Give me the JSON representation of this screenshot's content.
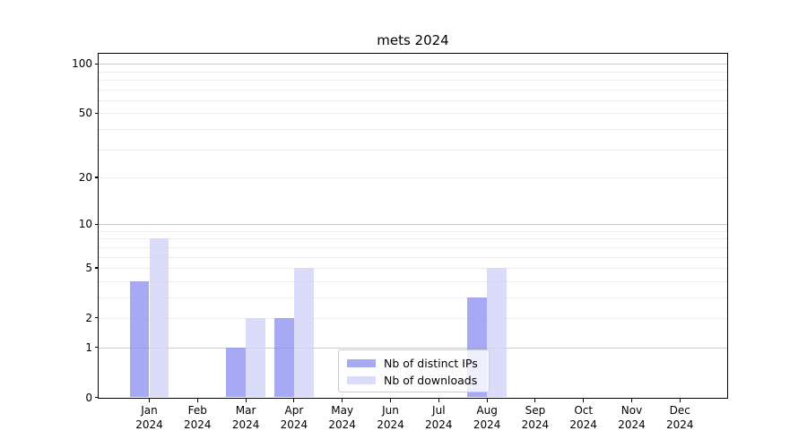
{
  "chart_data": {
    "type": "bar",
    "title": "mets 2024",
    "xlabel": "",
    "ylabel": "",
    "yscale": "log1p",
    "ylim": [
      0,
      114
    ],
    "categories": [
      "Jan",
      "Feb",
      "Mar",
      "Apr",
      "May",
      "Jun",
      "Jul",
      "Aug",
      "Sep",
      "Oct",
      "Nov",
      "Dec"
    ],
    "category_year": "2024",
    "series": [
      {
        "name": "Nb of distinct IPs",
        "color": "rgba(146,148,243,0.8)",
        "values": [
          4,
          0,
          1,
          2,
          0,
          0,
          0,
          3,
          0,
          0,
          0,
          0
        ]
      },
      {
        "name": "Nb of downloads",
        "color": "rgba(209,211,249,0.8)",
        "values": [
          8,
          0,
          2,
          5,
          0,
          0,
          0,
          5,
          0,
          0,
          0,
          0
        ]
      }
    ],
    "ytick_values": [
      0,
      1,
      2,
      5,
      10,
      20,
      50,
      100
    ],
    "ytick_labels": [
      "0",
      "1",
      "2",
      "5",
      "10",
      "20",
      "50",
      "100"
    ],
    "major_grid_values": [
      1,
      10,
      100
    ],
    "minor_grid_values": [
      2,
      3,
      4,
      5,
      6,
      7,
      8,
      9,
      20,
      30,
      40,
      50,
      60,
      70,
      80,
      90
    ],
    "grid": "on",
    "legend": {
      "position": "lower center",
      "entries": [
        "Nb of distinct IPs",
        "Nb of downloads"
      ]
    },
    "colors": {
      "distinct_ips": "rgba(146,148,243,0.8)",
      "downloads": "rgba(209,211,249,0.8)",
      "major_grid": "#c9c9c9",
      "minor_grid": "#ececec",
      "spine": "#000000",
      "text": "#000000"
    }
  }
}
